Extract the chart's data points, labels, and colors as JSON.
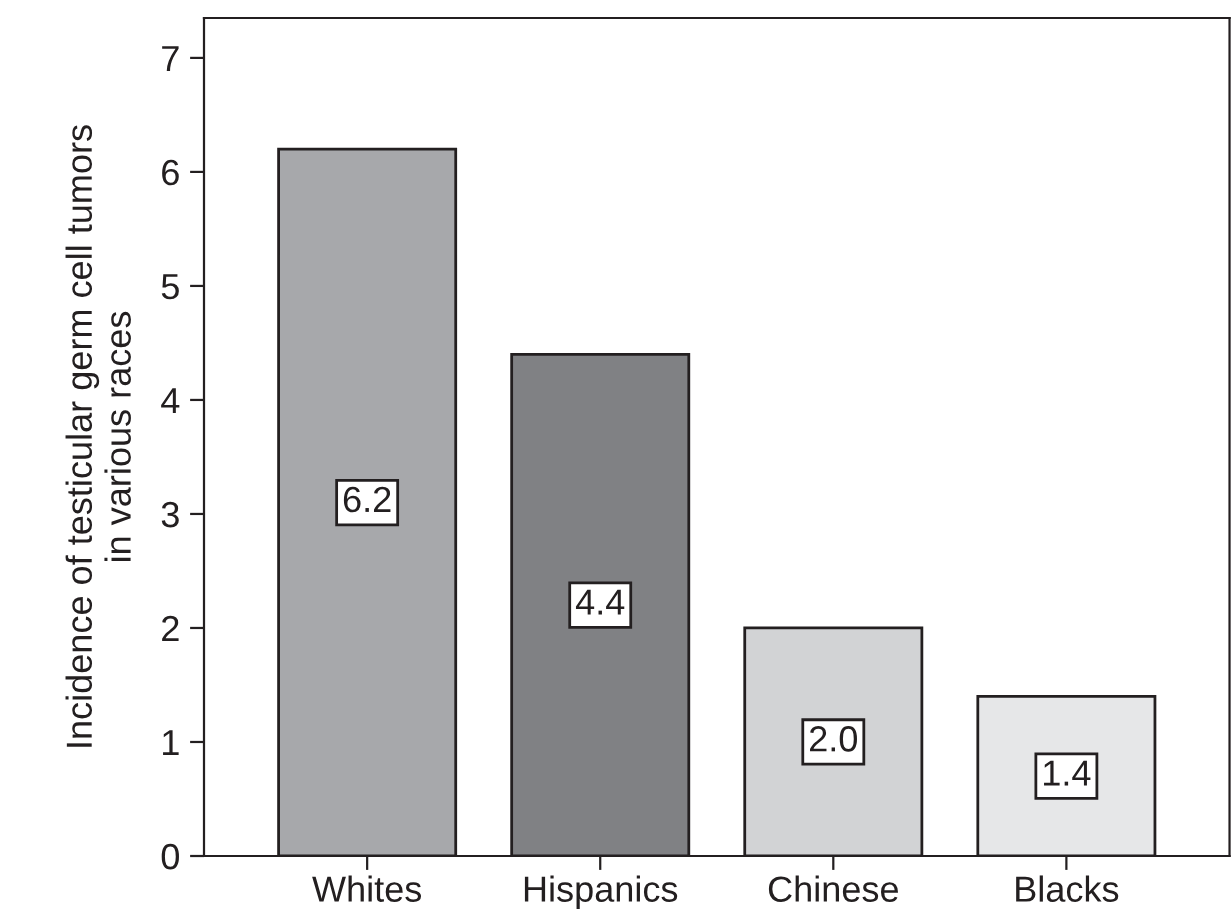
{
  "chart_data": {
    "type": "bar",
    "ylabel": "Incidence of testicular germ cell tumors\nin various races",
    "categories": [
      "Whites",
      "Hispanics",
      "Chinese",
      "Blacks"
    ],
    "values": [
      6.2,
      4.4,
      2.0,
      1.4
    ],
    "value_labels": [
      "6.2",
      "4.4",
      "2.0",
      "1.4"
    ],
    "colors": [
      "#a7a8ab",
      "#808184",
      "#d2d3d5",
      "#e6e7e8"
    ],
    "ylim": [
      0,
      7.35
    ],
    "yticks": [
      0,
      1,
      2,
      3,
      4,
      5,
      6,
      7
    ],
    "grid": false,
    "legend": false
  }
}
